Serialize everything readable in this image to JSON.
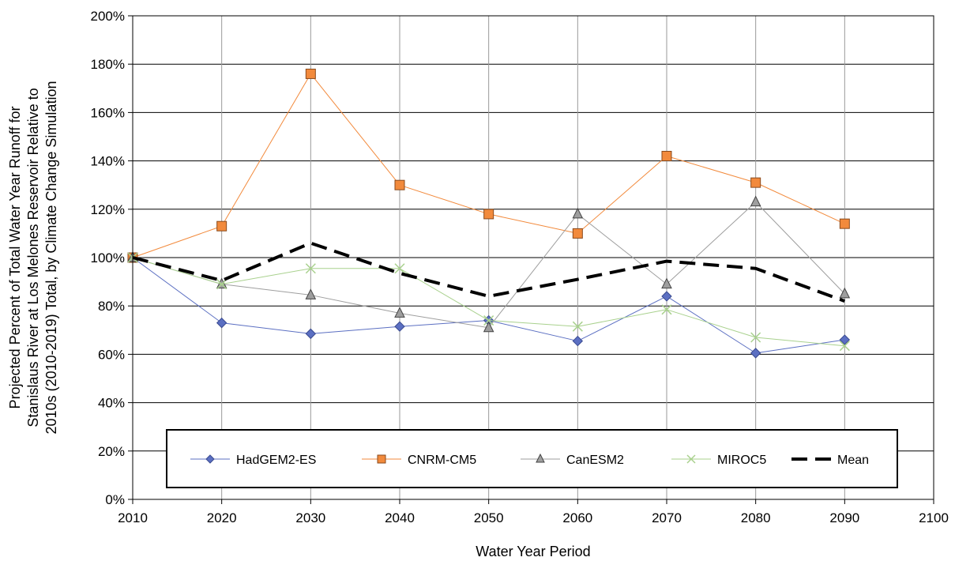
{
  "chart_data": {
    "type": "line",
    "xlabel": "Water Year Period",
    "ylabel_lines": [
      "Projected Percent of Total Water Year Runoff for",
      "Stanislaus River at Los Melones Reservoir Relative to",
      "2010s (2010-2019) Total, by Climate Change Simulation"
    ],
    "xlim": [
      2010,
      2100
    ],
    "ylim": [
      0,
      200
    ],
    "x_ticks": [
      "2010",
      "2020",
      "2030",
      "2040",
      "2050",
      "2060",
      "2070",
      "2080",
      "2090",
      "2100"
    ],
    "y_ticks": [
      "0%",
      "20%",
      "40%",
      "60%",
      "80%",
      "100%",
      "120%",
      "140%",
      "160%",
      "180%",
      "200%"
    ],
    "grid": true,
    "legend_position": "bottom-inside",
    "x": [
      2010,
      2020,
      2030,
      2040,
      2050,
      2060,
      2070,
      2080,
      2090
    ],
    "series": [
      {
        "name": "HadGEM2-ES",
        "color": "#5b6fc2",
        "marker": "diamond",
        "values": [
          100,
          73,
          68.5,
          71.5,
          74,
          65.5,
          84,
          60.5,
          66
        ]
      },
      {
        "name": "CNRM-CM5",
        "color": "#f28a3c",
        "marker": "square",
        "values": [
          100,
          113,
          176,
          130,
          118,
          110,
          142,
          131,
          114
        ]
      },
      {
        "name": "CanESM2",
        "color": "#9e9e9e",
        "marker": "triangle",
        "values": [
          100,
          89,
          84.5,
          77,
          71,
          118,
          89,
          123,
          85
        ]
      },
      {
        "name": "MIROC5",
        "color": "#a9d18e",
        "marker": "x",
        "values": [
          100,
          89,
          95.5,
          95.5,
          74,
          71.5,
          78.5,
          67,
          63.5
        ]
      },
      {
        "name": "Mean",
        "color": "#000000",
        "marker": "none",
        "dashed": true,
        "values": [
          100,
          90.5,
          106,
          93.5,
          84,
          91,
          98.5,
          95.5,
          82
        ]
      }
    ]
  }
}
